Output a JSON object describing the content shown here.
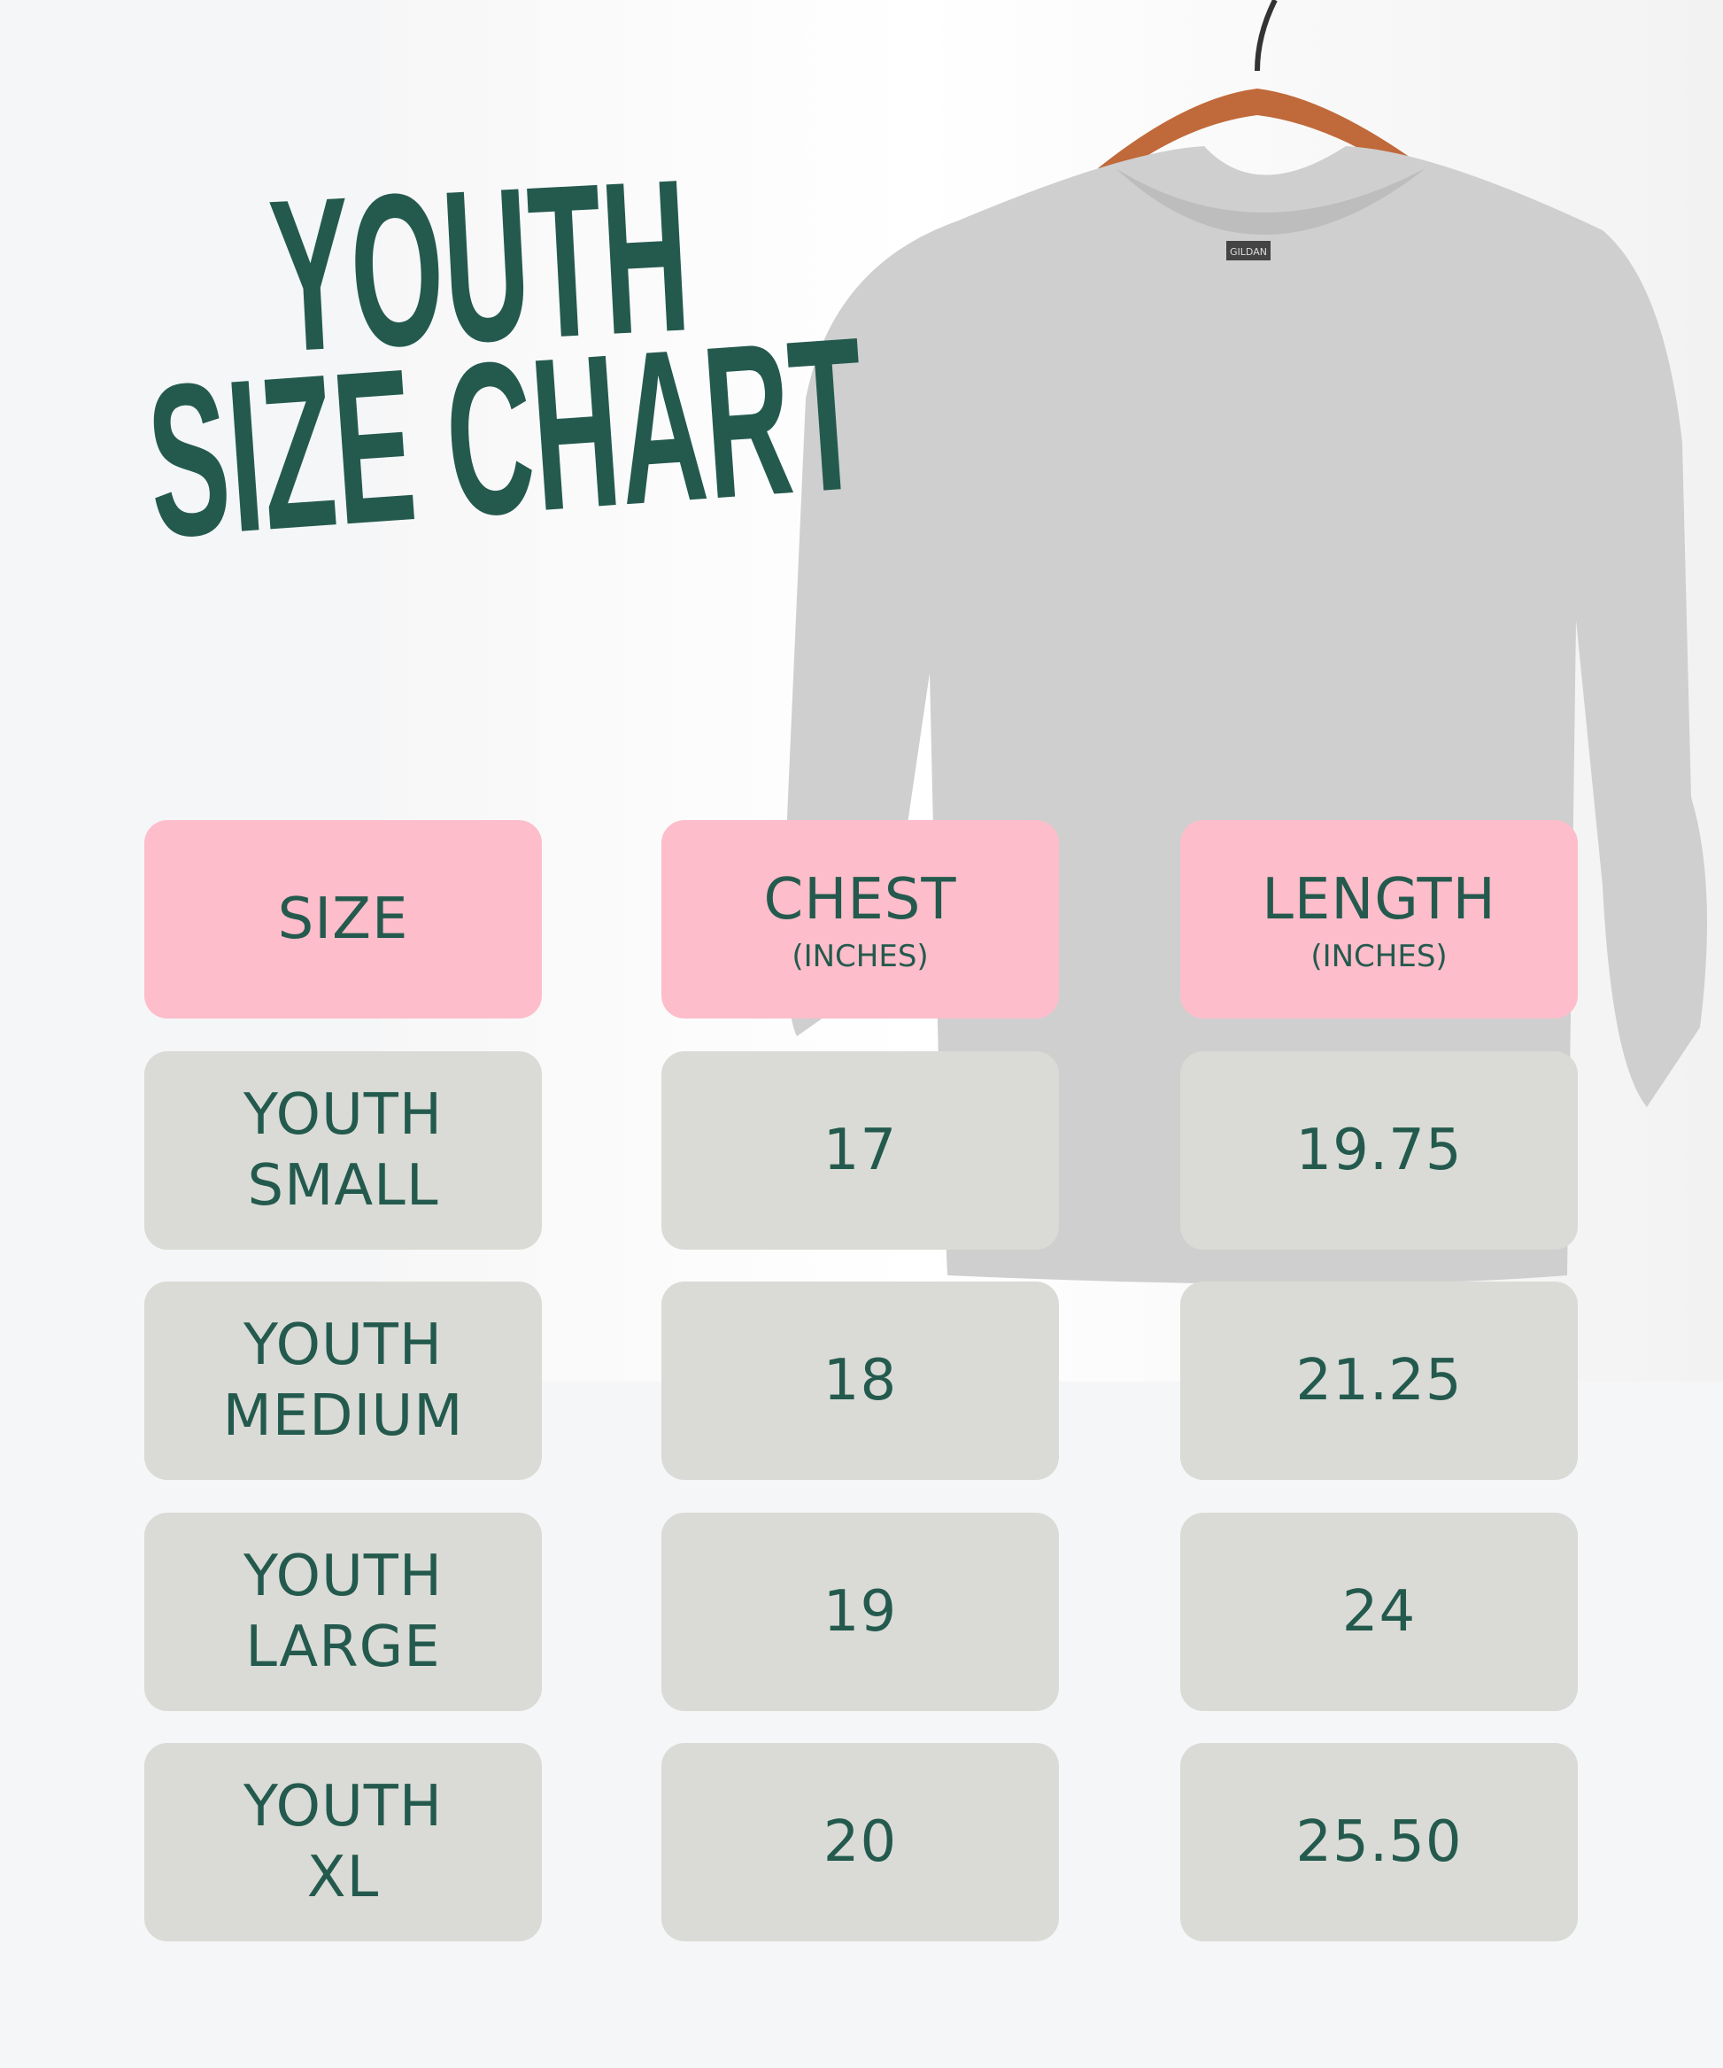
{
  "title": {
    "line1": "YOUTH",
    "line2": "SIZE CHART"
  },
  "colors": {
    "accent": "#245a4e",
    "header_bg": "#fdbdca",
    "cell_bg": "#dadbd6"
  },
  "photo": {
    "garment_label": "GILDAN"
  },
  "table": {
    "headers": [
      {
        "label": "SIZE",
        "unit": ""
      },
      {
        "label": "CHEST",
        "unit": "(INCHES)"
      },
      {
        "label": "LENGTH",
        "unit": "(INCHES)"
      }
    ],
    "rows": [
      {
        "size_line1": "YOUTH",
        "size_line2": "SMALL",
        "chest": "17",
        "length": "19.75"
      },
      {
        "size_line1": "YOUTH",
        "size_line2": "MEDIUM",
        "chest": "18",
        "length": "21.25"
      },
      {
        "size_line1": "YOUTH",
        "size_line2": "LARGE",
        "chest": "19",
        "length": "24"
      },
      {
        "size_line1": "YOUTH",
        "size_line2": "XL",
        "chest": "20",
        "length": "25.50"
      }
    ]
  }
}
